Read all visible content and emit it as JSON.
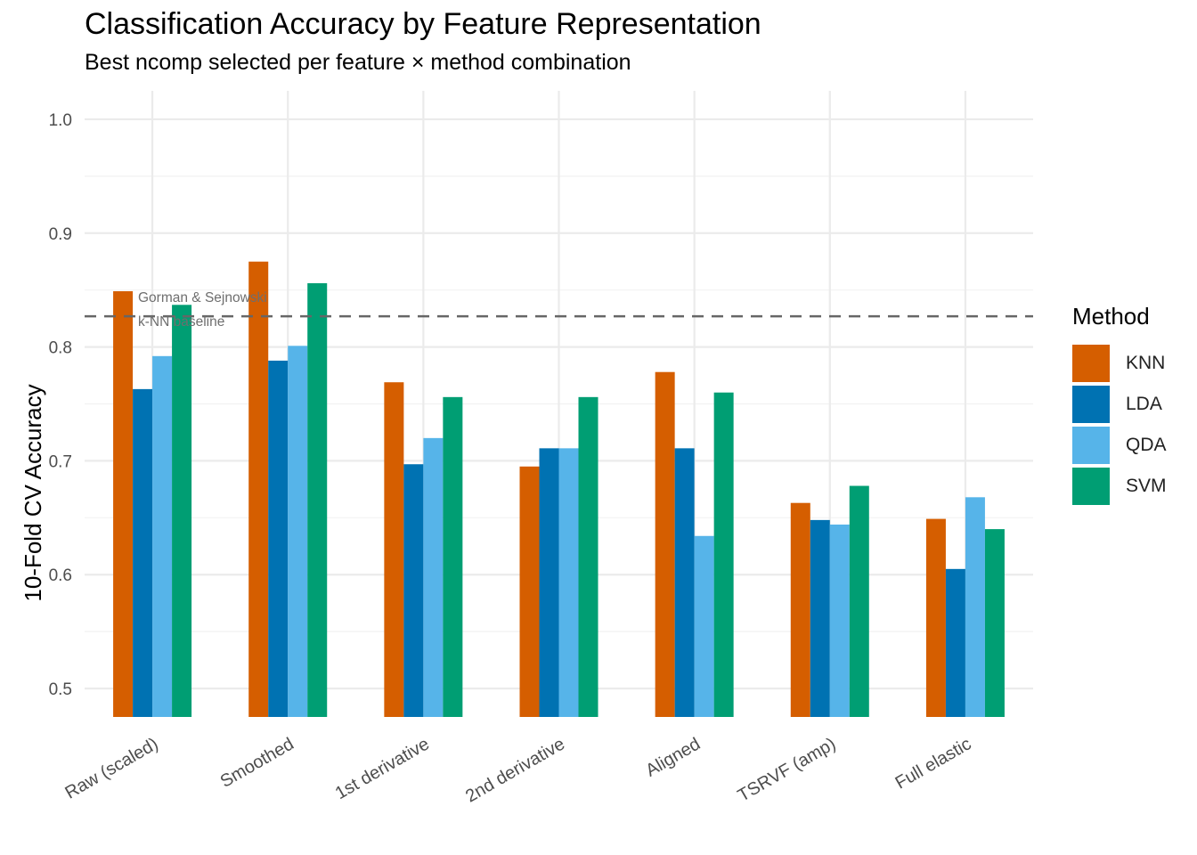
{
  "chart_data": {
    "type": "bar",
    "title": "Classification Accuracy by Feature Representation",
    "subtitle": "Best ncomp selected per feature × method combination",
    "xlabel": "",
    "ylabel": "10-Fold CV Accuracy",
    "ylim": [
      0.475,
      1.025
    ],
    "yticks": [
      "0.5",
      "0.6",
      "0.7",
      "0.8",
      "0.9",
      "1.0"
    ],
    "categories": [
      "Raw (scaled)",
      "Smoothed",
      "1st derivative",
      "2nd derivative",
      "Aligned",
      "TSRVF (amp)",
      "Full elastic"
    ],
    "series": [
      {
        "name": "KNN",
        "color": "#D55E00",
        "values": [
          0.849,
          0.875,
          0.769,
          0.695,
          0.778,
          0.663,
          0.649
        ]
      },
      {
        "name": "LDA",
        "color": "#0072B2",
        "values": [
          0.763,
          0.788,
          0.697,
          0.711,
          0.711,
          0.648,
          0.605
        ]
      },
      {
        "name": "QDA",
        "color": "#56B4E9",
        "values": [
          0.792,
          0.801,
          0.72,
          0.711,
          0.634,
          0.644,
          0.668
        ]
      },
      {
        "name": "SVM",
        "color": "#009E73",
        "values": [
          0.837,
          0.856,
          0.756,
          0.756,
          0.76,
          0.678,
          0.64
        ]
      }
    ],
    "reference_line": {
      "value": 0.827,
      "label_line1": "Gorman & Sejnowski",
      "label_line2": "k-NN baseline",
      "color": "#666666"
    },
    "legend": {
      "title": "Method",
      "position": "right"
    },
    "grid": true
  }
}
